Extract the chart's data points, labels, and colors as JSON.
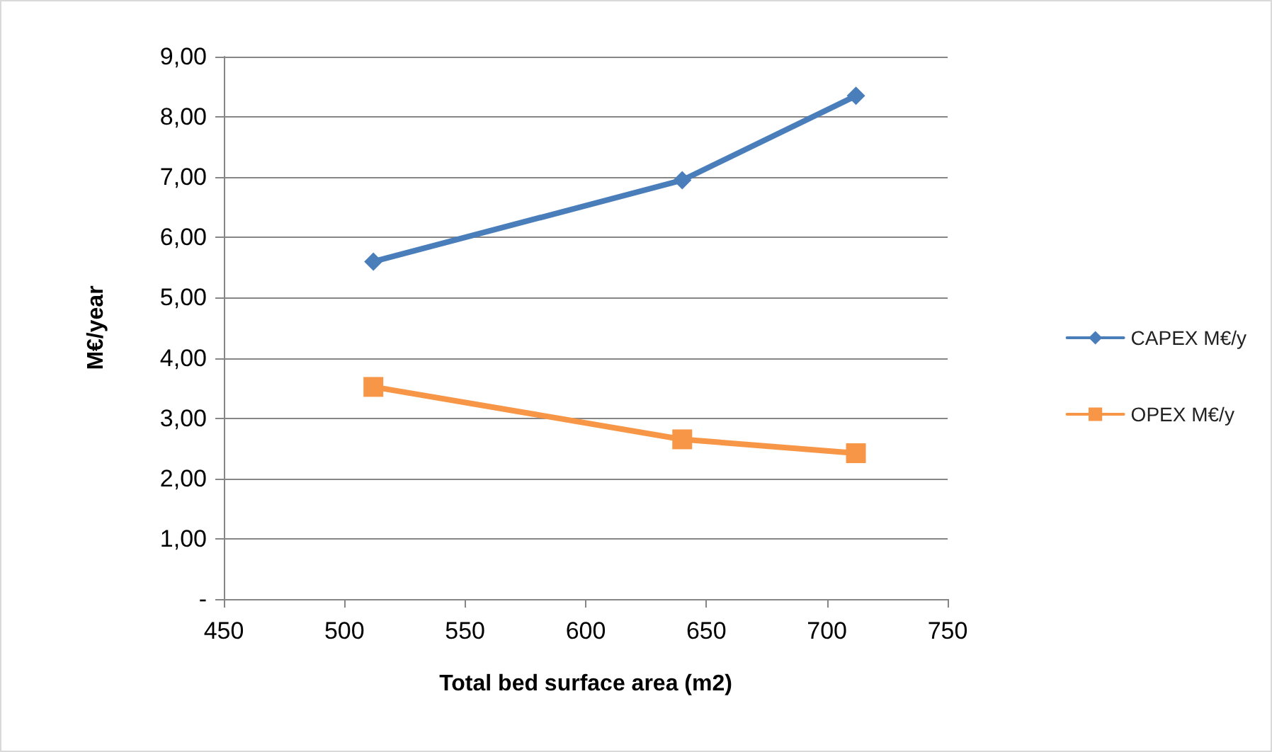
{
  "chart_data": {
    "type": "line",
    "xlabel": "Total bed surface area (m2)",
    "ylabel": "M€/year",
    "series": [
      {
        "name": "CAPEX M€/y",
        "color": "#4a7ebb",
        "marker": "diamond",
        "x": [
          512,
          640,
          712
        ],
        "values": [
          5.6,
          6.95,
          8.35
        ]
      },
      {
        "name": "OPEX M€/y",
        "color": "#f79646",
        "marker": "square",
        "x": [
          512,
          640,
          712
        ],
        "values": [
          3.52,
          2.65,
          2.42
        ]
      }
    ],
    "xlim": [
      450,
      750
    ],
    "xticks": [
      450,
      500,
      550,
      600,
      650,
      700,
      750
    ],
    "ylim": [
      0,
      9
    ],
    "yticks": [
      {
        "value": 0,
        "label": "-"
      },
      {
        "value": 1,
        "label": "1,00"
      },
      {
        "value": 2,
        "label": "2,00"
      },
      {
        "value": 3,
        "label": "3,00"
      },
      {
        "value": 4,
        "label": "4,00"
      },
      {
        "value": 5,
        "label": "5,00"
      },
      {
        "value": 6,
        "label": "6,00"
      },
      {
        "value": 7,
        "label": "7,00"
      },
      {
        "value": 8,
        "label": "8,00"
      },
      {
        "value": 9,
        "label": "9,00"
      }
    ],
    "grid": "y",
    "legend": "right",
    "line_style": "solid"
  }
}
